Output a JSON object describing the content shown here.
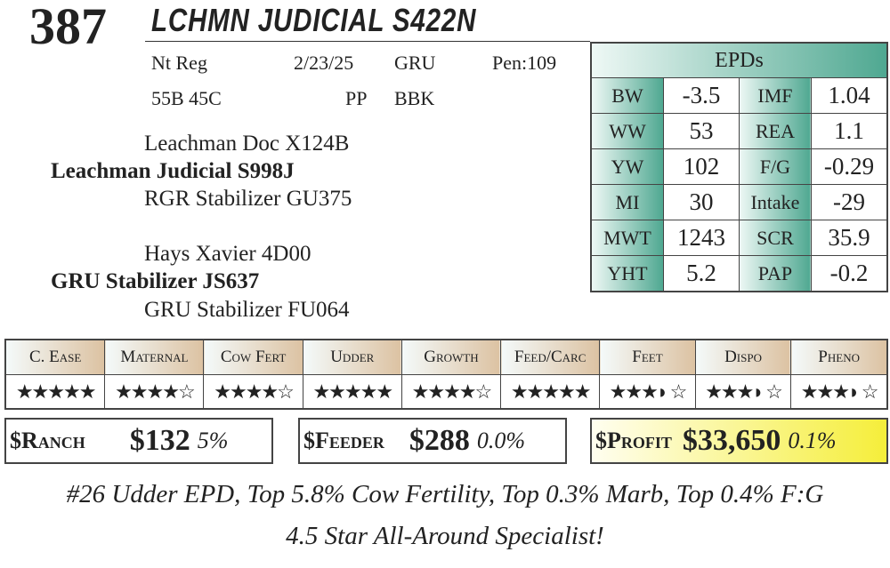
{
  "lot": "387",
  "name": "LCHMN JUDICIAL S422N",
  "info": {
    "reg": "Nt Reg",
    "dob": "2/23/25",
    "breeder": "GRU",
    "pen": "Pen:109",
    "tattoo": "55B 45C",
    "polled": "PP",
    "color": "BBK"
  },
  "pedigree": {
    "sire_sire": "Leachman Doc X124B",
    "sire": "Leachman Judicial S998J",
    "sire_dam": "RGR Stabilizer GU375",
    "dam_sire": "Hays Xavier 4D00",
    "dam": "GRU Stabilizer JS637",
    "dam_dam": "GRU Stabilizer FU064"
  },
  "epds": {
    "title": "EPDs",
    "rows": [
      [
        "BW",
        "-3.5",
        "IMF",
        "1.04"
      ],
      [
        "WW",
        "53",
        "REA",
        "1.1"
      ],
      [
        "YW",
        "102",
        "F/G",
        "-0.29"
      ],
      [
        "MI",
        "30",
        "Intake",
        "-29"
      ],
      [
        "MWT",
        "1243",
        "SCR",
        "35.9"
      ],
      [
        "YHT",
        "5.2",
        "PAP",
        "-0.2"
      ]
    ]
  },
  "traits": [
    {
      "label": "C. Ease",
      "stars": 5
    },
    {
      "label": "Maternal",
      "stars": 4
    },
    {
      "label": "Cow Fert",
      "stars": 4
    },
    {
      "label": "Udder",
      "stars": 5
    },
    {
      "label": "Growth",
      "stars": 4
    },
    {
      "label": "Feed/Carc",
      "stars": 5
    },
    {
      "label": "Feet",
      "stars": 3.5
    },
    {
      "label": "Dispo",
      "stars": 3.5
    },
    {
      "label": "Pheno",
      "stars": 3.5
    }
  ],
  "indexes": [
    {
      "label": "$Ranch",
      "value": "$132",
      "pct": "5%"
    },
    {
      "label": "$Feeder",
      "value": "$288",
      "pct": "0.0%"
    },
    {
      "label": "$Profit",
      "value": "$33,650",
      "pct": "0.1%"
    }
  ],
  "colors": {
    "epd_accent": "#4fa891",
    "trait_header": "#dcc2a2",
    "profit_highlight": "#f5ee3a"
  },
  "footer": [
    "#26 Udder EPD, Top 5.8% Cow Fertility, Top 0.3% Marb, Top 0.4% F:G",
    "4.5 Star All-Around Specialist!"
  ]
}
